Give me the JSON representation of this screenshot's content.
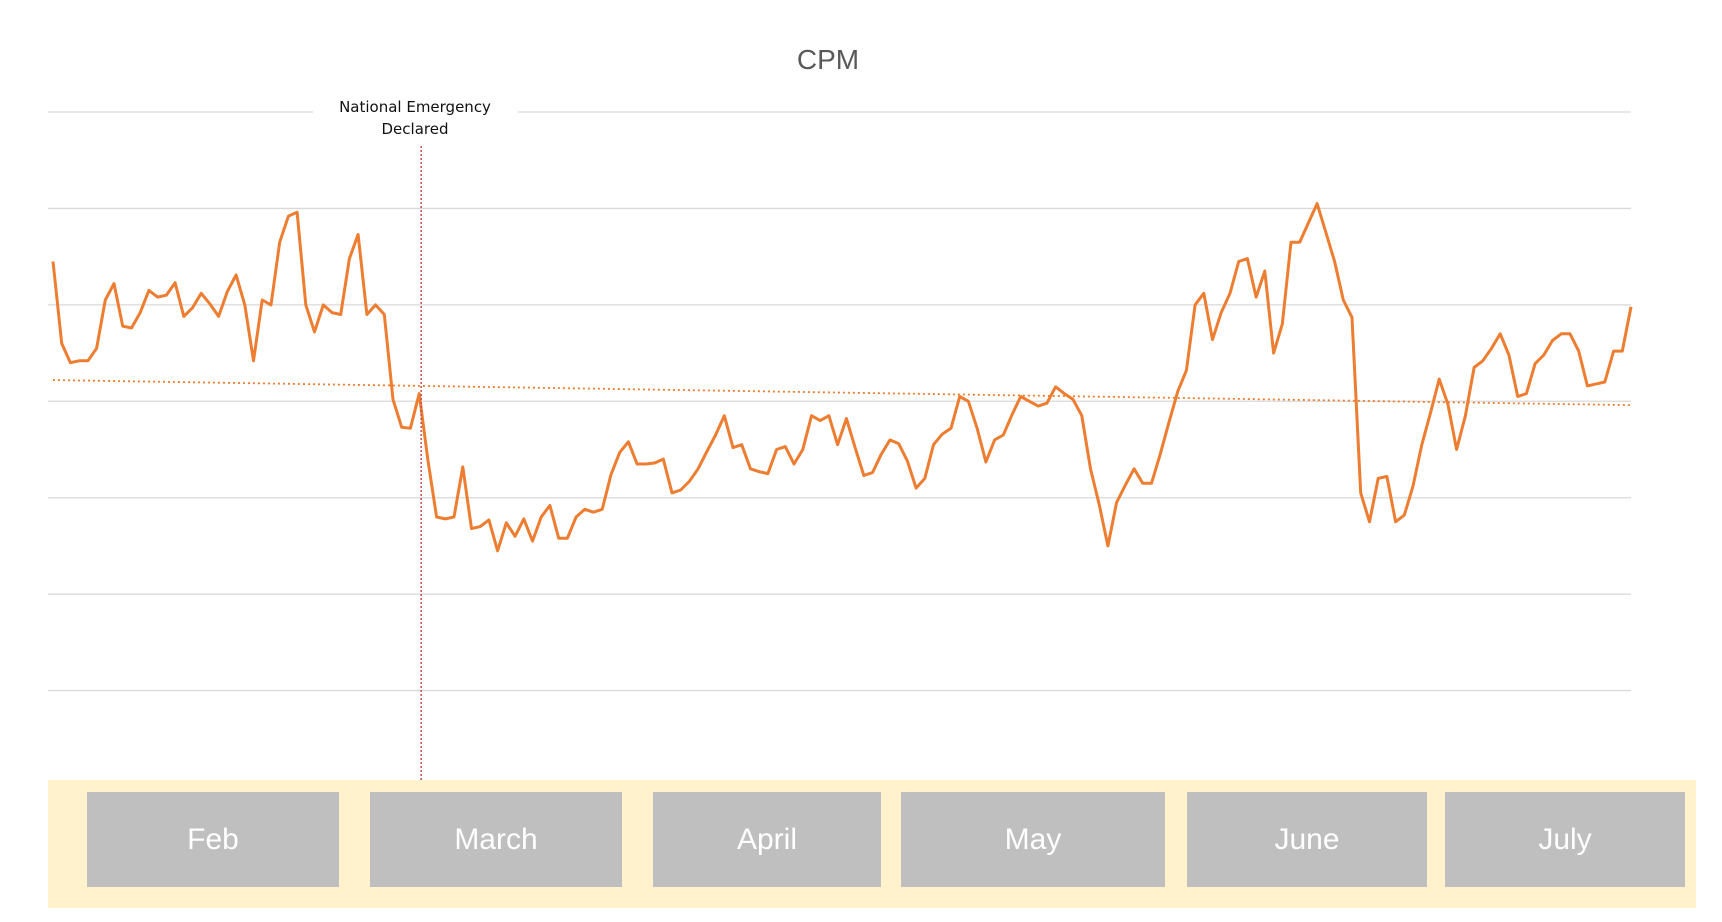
{
  "chart_data": {
    "type": "line",
    "title": "CPM",
    "xlabel": "",
    "ylabel": "",
    "ylim": [
      0,
      7
    ],
    "grid": true,
    "annotation": {
      "label_line1": "National Emergency",
      "label_line2": "Declared",
      "x_index": 42
    },
    "series": [
      {
        "values": [
          5.45,
          4.6,
          4.4,
          4.42,
          4.42,
          4.55,
          5.05,
          5.22,
          4.78,
          4.76,
          4.92,
          5.15,
          5.08,
          5.1,
          5.23,
          4.88,
          4.97,
          5.12,
          5.01,
          4.88,
          5.14,
          5.31,
          5.0,
          4.42,
          5.05,
          5.0,
          5.65,
          5.92,
          5.96,
          5.0,
          4.72,
          5.0,
          4.92,
          4.9,
          5.48,
          5.73,
          4.9,
          5.0,
          4.9,
          4.02,
          3.73,
          3.72,
          4.08,
          3.39,
          2.8,
          2.78,
          2.8,
          3.32,
          2.68,
          2.7,
          2.77,
          2.45,
          2.74,
          2.6,
          2.78,
          2.55,
          2.8,
          2.92,
          2.58,
          2.58,
          2.8,
          2.88,
          2.85,
          2.88,
          3.24,
          3.47,
          3.58,
          3.35,
          3.35,
          3.36,
          3.4,
          3.05,
          3.08,
          3.17,
          3.3,
          3.48,
          3.65,
          3.85,
          3.52,
          3.55,
          3.3,
          3.27,
          3.25,
          3.5,
          3.53,
          3.35,
          3.5,
          3.85,
          3.8,
          3.85,
          3.55,
          3.82,
          3.52,
          3.23,
          3.26,
          3.45,
          3.6,
          3.56,
          3.38,
          3.1,
          3.2,
          3.55,
          3.66,
          3.72,
          4.05,
          4.0,
          3.72,
          3.37,
          3.6,
          3.65,
          3.86,
          4.05,
          4.0,
          3.95,
          3.98,
          4.15,
          4.08,
          4.02,
          3.85,
          3.3,
          2.93,
          2.5,
          2.95,
          3.13,
          3.3,
          3.15,
          3.15,
          3.45,
          3.78,
          4.1,
          4.32,
          5.0,
          5.12,
          4.64,
          4.92,
          5.12,
          5.45,
          5.48,
          5.08,
          5.35,
          4.5,
          4.8,
          5.65,
          5.65,
          5.85,
          6.05,
          5.75,
          5.45,
          5.05,
          4.87,
          3.05,
          2.75,
          3.2,
          3.22,
          2.75,
          2.82,
          3.12,
          3.55,
          3.88,
          4.23,
          3.97,
          3.5,
          3.85,
          4.35,
          4.42,
          4.55,
          4.7,
          4.48,
          4.05,
          4.08,
          4.39,
          4.48,
          4.63,
          4.7,
          4.7,
          4.52,
          4.16,
          4.18,
          4.2,
          4.52,
          4.52,
          4.98
        ],
        "trend": [
          4.22,
          3.96
        ]
      }
    ]
  },
  "months": [
    "Feb",
    "March",
    "April",
    "May",
    "June",
    "July"
  ],
  "colors": {
    "line": "#ed7d31",
    "trend": "#ed7d31",
    "annotation_line": "#c0504d",
    "grid": "#d9d9d9",
    "band": "#fff2cc",
    "month_box": "#bfbfbf"
  }
}
